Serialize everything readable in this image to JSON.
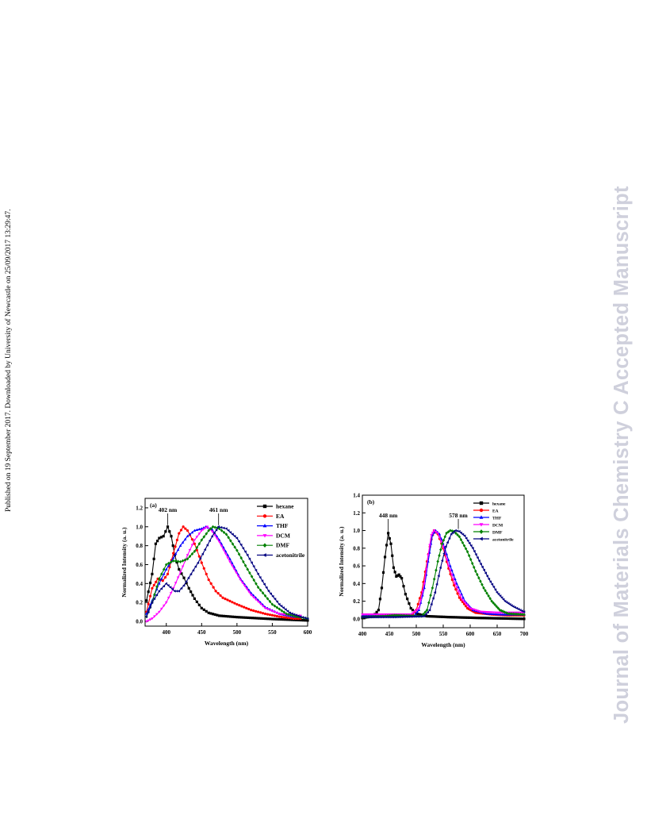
{
  "page": {
    "published_note": "Published on 19 September 2017. Downloaded by University of Newcastle on 25/09/2017 13:29:47.",
    "journal_watermark": "Journal of Materials Chemistry C Accepted Manuscript"
  },
  "chart_data": [
    {
      "type": "line",
      "panel_label": "(a)",
      "xlabel": "Wavelength (nm)",
      "ylabel": "Normalized Intensity (a. u.)",
      "xlim": [
        370,
        600
      ],
      "ylim": [
        -0.05,
        1.3
      ],
      "xticks": [
        400,
        450,
        500,
        550,
        600
      ],
      "yticks": [
        0.0,
        0.2,
        0.4,
        0.6,
        0.8,
        1.0,
        1.2
      ],
      "grid": false,
      "legend_position": "top-right",
      "annotations": [
        {
          "text": "402 nm",
          "x": 402,
          "y": 1.0
        },
        {
          "text": "461 nm",
          "x": 474,
          "y": 1.0
        }
      ],
      "series": [
        {
          "name": "hexane",
          "color": "#000000",
          "marker": "square",
          "points": [
            [
              372,
              0.22
            ],
            [
              380,
              0.5
            ],
            [
              385,
              0.82
            ],
            [
              390,
              0.88
            ],
            [
              396,
              0.9
            ],
            [
              402,
              1.0
            ],
            [
              407,
              0.9
            ],
            [
              412,
              0.7
            ],
            [
              418,
              0.55
            ],
            [
              425,
              0.46
            ],
            [
              432,
              0.35
            ],
            [
              440,
              0.24
            ],
            [
              450,
              0.14
            ],
            [
              460,
              0.09
            ],
            [
              475,
              0.06
            ],
            [
              500,
              0.045
            ],
            [
              550,
              0.025
            ],
            [
              600,
              0.01
            ]
          ]
        },
        {
          "name": "EA",
          "color": "#ff0000",
          "marker": "circle",
          "points": [
            [
              372,
              0.1
            ],
            [
              380,
              0.35
            ],
            [
              388,
              0.45
            ],
            [
              395,
              0.43
            ],
            [
              402,
              0.5
            ],
            [
              410,
              0.72
            ],
            [
              418,
              0.93
            ],
            [
              424,
              1.0
            ],
            [
              430,
              0.96
            ],
            [
              440,
              0.82
            ],
            [
              450,
              0.62
            ],
            [
              460,
              0.44
            ],
            [
              470,
              0.32
            ],
            [
              480,
              0.25
            ],
            [
              500,
              0.18
            ],
            [
              520,
              0.12
            ],
            [
              540,
              0.08
            ],
            [
              560,
              0.05
            ],
            [
              580,
              0.03
            ],
            [
              590,
              0.03
            ]
          ]
        },
        {
          "name": "THF",
          "color": "#0000ff",
          "marker": "triangle-up",
          "points": [
            [
              372,
              0.08
            ],
            [
              380,
              0.22
            ],
            [
              390,
              0.4
            ],
            [
              400,
              0.55
            ],
            [
              410,
              0.67
            ],
            [
              420,
              0.8
            ],
            [
              430,
              0.9
            ],
            [
              440,
              0.96
            ],
            [
              450,
              0.98
            ],
            [
              456,
              1.0
            ],
            [
              465,
              0.97
            ],
            [
              475,
              0.86
            ],
            [
              490,
              0.66
            ],
            [
              505,
              0.45
            ],
            [
              520,
              0.3
            ],
            [
              540,
              0.15
            ],
            [
              560,
              0.08
            ],
            [
              580,
              0.05
            ],
            [
              590,
              0.05
            ]
          ]
        },
        {
          "name": "DCM",
          "color": "#ff00ff",
          "marker": "triangle-down",
          "points": [
            [
              372,
              0.0
            ],
            [
              380,
              0.03
            ],
            [
              390,
              0.1
            ],
            [
              400,
              0.2
            ],
            [
              410,
              0.35
            ],
            [
              420,
              0.52
            ],
            [
              430,
              0.7
            ],
            [
              440,
              0.86
            ],
            [
              450,
              0.96
            ],
            [
              458,
              1.0
            ],
            [
              465,
              0.95
            ],
            [
              475,
              0.84
            ],
            [
              490,
              0.63
            ],
            [
              505,
              0.44
            ],
            [
              520,
              0.28
            ],
            [
              540,
              0.14
            ],
            [
              560,
              0.08
            ],
            [
              580,
              0.06
            ],
            [
              590,
              0.06
            ]
          ]
        },
        {
          "name": "DMF",
          "color": "#008000",
          "marker": "diamond",
          "points": [
            [
              372,
              0.05
            ],
            [
              380,
              0.2
            ],
            [
              390,
              0.45
            ],
            [
              400,
              0.6
            ],
            [
              410,
              0.64
            ],
            [
              420,
              0.63
            ],
            [
              430,
              0.66
            ],
            [
              440,
              0.74
            ],
            [
              450,
              0.86
            ],
            [
              460,
              0.96
            ],
            [
              466,
              1.0
            ],
            [
              475,
              0.98
            ],
            [
              485,
              0.92
            ],
            [
              500,
              0.75
            ],
            [
              515,
              0.55
            ],
            [
              530,
              0.36
            ],
            [
              550,
              0.18
            ],
            [
              570,
              0.08
            ],
            [
              585,
              0.05
            ],
            [
              600,
              0.03
            ]
          ]
        },
        {
          "name": "acetonitrile",
          "color": "#000080",
          "marker": "triangle-left",
          "points": [
            [
              372,
              0.05
            ],
            [
              380,
              0.2
            ],
            [
              390,
              0.32
            ],
            [
              400,
              0.4
            ],
            [
              406,
              0.36
            ],
            [
              412,
              0.32
            ],
            [
              418,
              0.32
            ],
            [
              425,
              0.38
            ],
            [
              435,
              0.5
            ],
            [
              445,
              0.62
            ],
            [
              455,
              0.76
            ],
            [
              465,
              0.9
            ],
            [
              474,
              1.0
            ],
            [
              485,
              0.98
            ],
            [
              500,
              0.88
            ],
            [
              515,
              0.7
            ],
            [
              530,
              0.5
            ],
            [
              545,
              0.32
            ],
            [
              560,
              0.18
            ],
            [
              575,
              0.09
            ],
            [
              590,
              0.05
            ],
            [
              600,
              0.03
            ]
          ]
        }
      ]
    },
    {
      "type": "line",
      "panel_label": "(b)",
      "xlabel": "Wavelength (nm)",
      "ylabel": "Normalized Intensity (a. u.)",
      "xlim": [
        400,
        700
      ],
      "ylim": [
        -0.1,
        1.4
      ],
      "xticks": [
        400,
        450,
        500,
        550,
        600,
        650,
        700
      ],
      "yticks": [
        0.0,
        0.2,
        0.4,
        0.6,
        0.8,
        1.0,
        1.2,
        1.4
      ],
      "grid": false,
      "legend_position": "top-right",
      "annotations": [
        {
          "text": "448 nm",
          "x": 448,
          "y": 0.96
        },
        {
          "text": "578 nm",
          "x": 578,
          "y": 1.0
        }
      ],
      "series": [
        {
          "name": "hexane",
          "color": "#000000",
          "marker": "square",
          "points": [
            [
              400,
              0.01
            ],
            [
              420,
              0.03
            ],
            [
              430,
              0.1
            ],
            [
              436,
              0.35
            ],
            [
              442,
              0.7
            ],
            [
              448,
              0.97
            ],
            [
              453,
              0.85
            ],
            [
              458,
              0.58
            ],
            [
              463,
              0.48
            ],
            [
              468,
              0.5
            ],
            [
              473,
              0.46
            ],
            [
              480,
              0.28
            ],
            [
              490,
              0.12
            ],
            [
              500,
              0.06
            ],
            [
              520,
              0.03
            ],
            [
              560,
              0.02
            ],
            [
              620,
              0.01
            ],
            [
              700,
              0.0
            ]
          ]
        },
        {
          "name": "EA",
          "color": "#ff0000",
          "marker": "circle",
          "points": [
            [
              400,
              0.03
            ],
            [
              460,
              0.03
            ],
            [
              490,
              0.03
            ],
            [
              500,
              0.1
            ],
            [
              510,
              0.3
            ],
            [
              520,
              0.65
            ],
            [
              528,
              0.9
            ],
            [
              533,
              1.0
            ],
            [
              540,
              0.96
            ],
            [
              550,
              0.8
            ],
            [
              560,
              0.57
            ],
            [
              570,
              0.38
            ],
            [
              580,
              0.24
            ],
            [
              595,
              0.12
            ],
            [
              610,
              0.07
            ],
            [
              640,
              0.05
            ],
            [
              670,
              0.04
            ],
            [
              700,
              0.04
            ]
          ]
        },
        {
          "name": "THF",
          "color": "#0000ff",
          "marker": "triangle-up",
          "points": [
            [
              400,
              0.04
            ],
            [
              480,
              0.03
            ],
            [
              495,
              0.03
            ],
            [
              505,
              0.1
            ],
            [
              515,
              0.35
            ],
            [
              522,
              0.65
            ],
            [
              530,
              0.95
            ],
            [
              536,
              1.0
            ],
            [
              543,
              0.96
            ],
            [
              553,
              0.8
            ],
            [
              563,
              0.6
            ],
            [
              575,
              0.4
            ],
            [
              590,
              0.2
            ],
            [
              605,
              0.1
            ],
            [
              630,
              0.06
            ],
            [
              660,
              0.05
            ],
            [
              700,
              0.05
            ]
          ]
        },
        {
          "name": "DCM",
          "color": "#ff00ff",
          "marker": "triangle-down",
          "points": [
            [
              400,
              0.05
            ],
            [
              460,
              0.05
            ],
            [
              490,
              0.05
            ],
            [
              505,
              0.12
            ],
            [
              515,
              0.4
            ],
            [
              522,
              0.72
            ],
            [
              528,
              0.95
            ],
            [
              533,
              1.0
            ],
            [
              540,
              0.97
            ],
            [
              550,
              0.82
            ],
            [
              560,
              0.6
            ],
            [
              572,
              0.4
            ],
            [
              585,
              0.22
            ],
            [
              600,
              0.12
            ],
            [
              620,
              0.08
            ],
            [
              650,
              0.07
            ],
            [
              700,
              0.07
            ]
          ]
        },
        {
          "name": "DMF",
          "color": "#008000",
          "marker": "diamond",
          "points": [
            [
              400,
              0.02
            ],
            [
              440,
              0.03
            ],
            [
              460,
              0.04
            ],
            [
              510,
              0.03
            ],
            [
              520,
              0.1
            ],
            [
              530,
              0.35
            ],
            [
              540,
              0.65
            ],
            [
              548,
              0.85
            ],
            [
              556,
              0.97
            ],
            [
              563,
              1.0
            ],
            [
              570,
              0.99
            ],
            [
              580,
              0.93
            ],
            [
              595,
              0.76
            ],
            [
              610,
              0.54
            ],
            [
              625,
              0.35
            ],
            [
              640,
              0.2
            ],
            [
              655,
              0.1
            ],
            [
              670,
              0.06
            ],
            [
              700,
              0.05
            ]
          ]
        },
        {
          "name": "acetonitrile",
          "color": "#000080",
          "marker": "triangle-left",
          "points": [
            [
              400,
              0.02
            ],
            [
              460,
              0.02
            ],
            [
              515,
              0.03
            ],
            [
              525,
              0.1
            ],
            [
              535,
              0.3
            ],
            [
              545,
              0.58
            ],
            [
              555,
              0.82
            ],
            [
              565,
              0.96
            ],
            [
              573,
              1.0
            ],
            [
              580,
              0.99
            ],
            [
              590,
              0.94
            ],
            [
              605,
              0.8
            ],
            [
              620,
              0.62
            ],
            [
              635,
              0.45
            ],
            [
              650,
              0.3
            ],
            [
              665,
              0.2
            ],
            [
              680,
              0.14
            ],
            [
              700,
              0.08
            ]
          ]
        }
      ]
    }
  ]
}
